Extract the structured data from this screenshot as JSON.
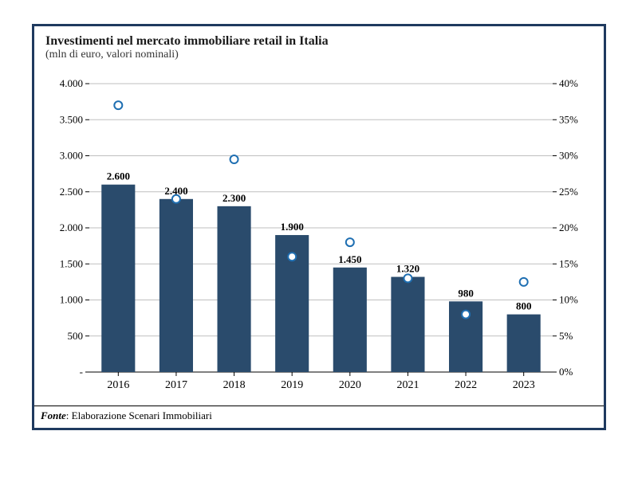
{
  "chart": {
    "type": "bar+scatter",
    "title": "Investimenti nel mercato immobiliare retail in Italia",
    "subtitle": "(mln di euro, valori nominali)",
    "title_fontsize": 16,
    "subtitle_fontsize": 14,
    "categories": [
      "2016",
      "2017",
      "2018",
      "2019",
      "2020",
      "2021",
      "2022",
      "2023"
    ],
    "bar_values": [
      2600,
      2400,
      2300,
      1900,
      1450,
      1320,
      980,
      800
    ],
    "bar_labels": [
      "2.600",
      "2.400",
      "2.300",
      "1.900",
      "1.450",
      "1.320",
      "980",
      "800"
    ],
    "bar_color": "#2a4b6c",
    "bar_width": 0.58,
    "marker_values_pct": [
      37,
      24,
      29.5,
      16,
      18,
      13,
      8,
      12.5
    ],
    "marker_stroke": "#1f6fb2",
    "marker_fill": "#ffffff",
    "marker_radius": 5,
    "left_axis": {
      "min": 0,
      "max": 4000,
      "tick_step": 500,
      "tick_labels": [
        "-",
        "500",
        "1.000",
        "1.500",
        "2.000",
        "2.500",
        "3.000",
        "3.500",
        "4.000"
      ],
      "fontsize": 13
    },
    "right_axis": {
      "min": 0,
      "max": 40,
      "tick_step": 5,
      "tick_labels": [
        "0%",
        "5%",
        "10%",
        "15%",
        "20%",
        "25%",
        "30%",
        "35%",
        "40%"
      ],
      "fontsize": 13
    },
    "category_fontsize": 14,
    "value_label_fontsize": 13,
    "grid_color": "#bfbfbf",
    "background_color": "#ffffff",
    "border_color": "#1f3a5f",
    "source_label": "Fonte",
    "source_text": ": Elaborazione Scenari Immobiliari"
  }
}
